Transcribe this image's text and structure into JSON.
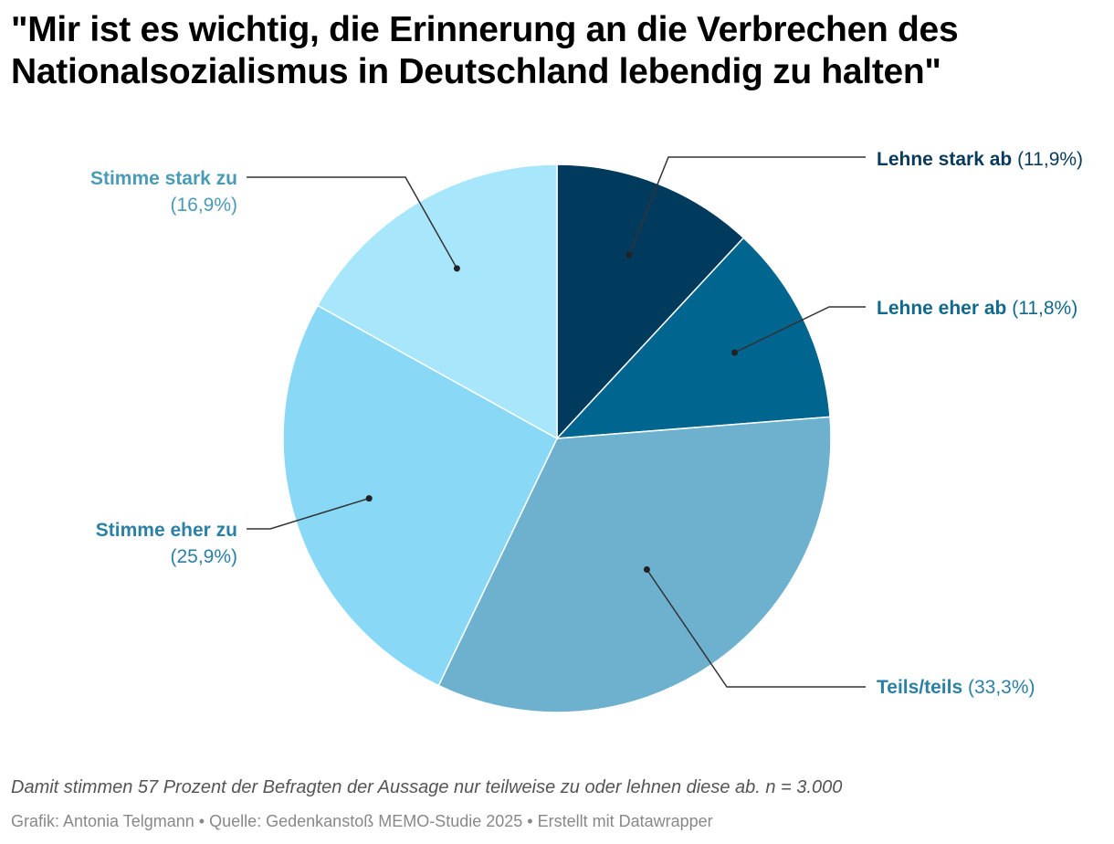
{
  "title": "\"Mir ist es wichtig, die Erinnerung an die Verbrechen des Nationalsozialismus in Deutschland lebendig zu halten\"",
  "note": "Damit stimmen 57 Prozent der Befragten der Aussage nur teilweise zu oder lehnen diese ab. n = 3.000",
  "credit": "Grafik: Antonia Telgmann • Quelle: Gedenkanstoß MEMO-Studie 2025 • Erstellt mit Datawrapper",
  "chart_data": {
    "type": "pie",
    "title": "\"Mir ist es wichtig, die Erinnerung an die Verbrechen des Nationalsozialismus in Deutschland lebendig zu halten\"",
    "start": "12 o'clock",
    "direction": "clockwise",
    "slices": [
      {
        "label": "Lehne stark ab",
        "value": 11.9,
        "value_label": "(11,9%)",
        "color": "#003a5d",
        "label_color": "#0a3a5c"
      },
      {
        "label": "Lehne eher ab",
        "value": 11.8,
        "value_label": "(11,8%)",
        "color": "#00658f",
        "label_color": "#12698f"
      },
      {
        "label": "Teils/teils",
        "value": 33.3,
        "value_label": "(33,3%)",
        "color": "#6db1cf",
        "label_color": "#2b80a6"
      },
      {
        "label": "Stimme eher zu",
        "value": 25.9,
        "value_label": "(25,9%)",
        "color": "#89d8f6",
        "label_color": "#2b80a6"
      },
      {
        "label": "Stimme stark zu",
        "value": 16.9,
        "value_label": "(16,9%)",
        "color": "#a8e6fb",
        "label_color": "#4a9bb5"
      }
    ]
  }
}
